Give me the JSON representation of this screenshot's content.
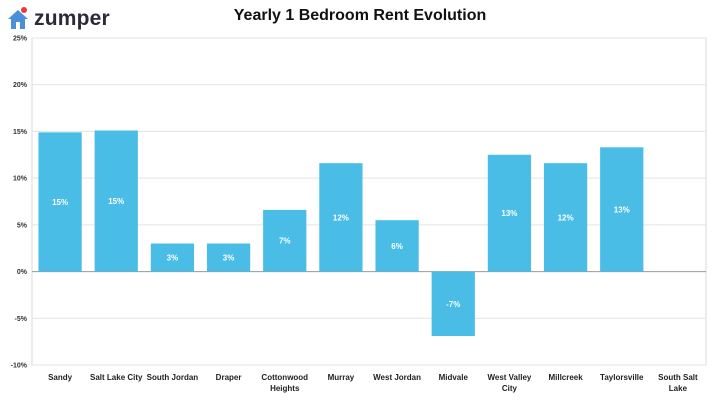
{
  "brand": {
    "name": "zumper",
    "accent": "#4a90d9",
    "dot": "#e63946"
  },
  "chart_data": {
    "type": "bar",
    "title": "Yearly 1 Bedroom Rent Evolution",
    "xlabel": "",
    "ylabel": "",
    "ylim": [
      -10,
      25
    ],
    "yticks": [
      "25%",
      "20%",
      "15%",
      "10%",
      "5%",
      "0%",
      "-5%",
      "-10%"
    ],
    "ytick_values": [
      25,
      20,
      15,
      10,
      5,
      0,
      -5,
      -10
    ],
    "grid": true,
    "bar_color": "#4abde6",
    "categories": [
      [
        "Sandy"
      ],
      [
        "Salt Lake City"
      ],
      [
        "South Jordan"
      ],
      [
        "Draper"
      ],
      [
        "Cottonwood",
        "Heights"
      ],
      [
        "Murray"
      ],
      [
        "West Jordan"
      ],
      [
        "Midvale"
      ],
      [
        "West Valley",
        "City"
      ],
      [
        "Millcreek"
      ],
      [
        "Taylorsville"
      ],
      [
        "South Salt",
        "Lake"
      ]
    ],
    "values": [
      14.9,
      15.1,
      3.0,
      3.0,
      6.6,
      11.6,
      5.5,
      -6.9,
      12.5,
      11.6,
      13.3,
      0
    ],
    "data_labels": [
      "15%",
      "15%",
      "3%",
      "3%",
      "7%",
      "12%",
      "6%",
      "-7%",
      "13%",
      "12%",
      "13%",
      ""
    ]
  }
}
